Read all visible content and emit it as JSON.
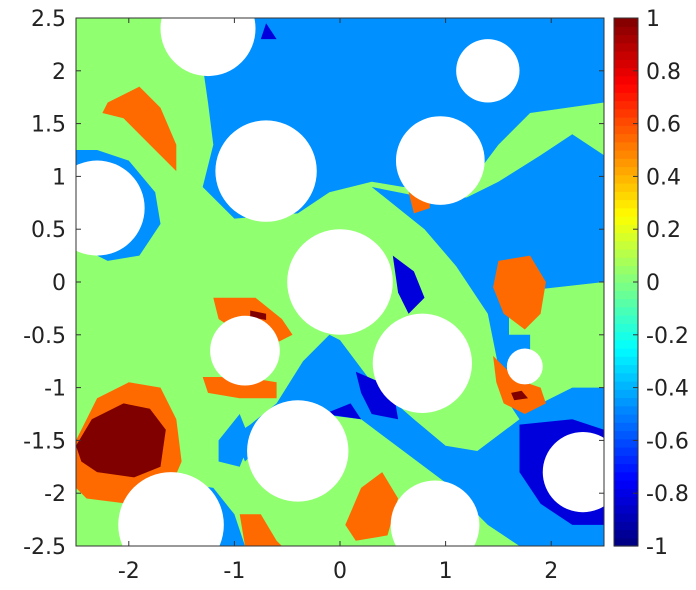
{
  "chart_data": {
    "type": "heatmap",
    "title": "",
    "xlabel": "",
    "ylabel": "",
    "xlim": [
      -2.5,
      2.5
    ],
    "ylim": [
      -2.5,
      2.5
    ],
    "x_ticks": [
      -2,
      -1,
      0,
      1,
      2
    ],
    "x_tick_labels": [
      "-2",
      "-1",
      "0",
      "1",
      "2"
    ],
    "y_ticks": [
      2.5,
      2,
      1.5,
      1,
      0.5,
      0,
      -0.5,
      -1,
      -1.5,
      -2,
      -2.5
    ],
    "y_tick_labels": [
      "2.5",
      "2",
      "1.5",
      "1",
      "0.5",
      "0",
      "-0.5",
      "-1",
      "-1.5",
      "-2",
      "-2.5"
    ],
    "colorbar": {
      "colormap": "jet",
      "range": [
        -1,
        1
      ],
      "ticks": [
        1,
        0.8,
        0.6,
        0.4,
        0.2,
        0,
        -0.2,
        -0.4,
        -0.6,
        -0.8,
        -1
      ],
      "tick_labels": [
        "1",
        "0.8",
        "0.6",
        "0.4",
        "0.2",
        "0",
        "-0.2",
        "-0.4",
        "-0.6",
        "-0.8",
        "-1"
      ]
    },
    "background_level": 0,
    "level_colors": {
      "-0.8": "#0000dd",
      "-0.5": "#0090ff",
      "0": "#90ff70",
      "0.6": "#ff6a00",
      "1": "#800000"
    },
    "holes": [
      {
        "cx": -1.25,
        "cy": 2.4,
        "r": 0.45
      },
      {
        "cx": 1.4,
        "cy": 2.0,
        "r": 0.3
      },
      {
        "cx": 0.95,
        "cy": 1.15,
        "r": 0.42
      },
      {
        "cx": -0.7,
        "cy": 1.05,
        "r": 0.48
      },
      {
        "cx": -2.3,
        "cy": 0.7,
        "r": 0.45
      },
      {
        "cx": 0.0,
        "cy": 0.0,
        "r": 0.5
      },
      {
        "cx": -0.9,
        "cy": -0.65,
        "r": 0.33
      },
      {
        "cx": 0.78,
        "cy": -0.77,
        "r": 0.47
      },
      {
        "cx": 1.75,
        "cy": -0.8,
        "r": 0.17
      },
      {
        "cx": -0.4,
        "cy": -1.6,
        "r": 0.48
      },
      {
        "cx": 2.3,
        "cy": -1.8,
        "r": 0.38
      },
      {
        "cx": -1.6,
        "cy": -2.3,
        "r": 0.5
      },
      {
        "cx": 0.9,
        "cy": -2.3,
        "r": 0.42
      }
    ],
    "regions": [
      {
        "level": -0.5,
        "points": [
          [
            -1.0,
            2.5
          ],
          [
            2.5,
            2.5
          ],
          [
            2.5,
            1.7
          ],
          [
            1.8,
            1.6
          ],
          [
            1.5,
            1.3
          ],
          [
            1.2,
            0.9
          ],
          [
            0.6,
            0.9
          ],
          [
            0.3,
            0.95
          ],
          [
            0.1,
            0.9
          ],
          [
            -0.1,
            0.85
          ],
          [
            -0.4,
            0.65
          ],
          [
            -1.0,
            0.6
          ],
          [
            -1.3,
            0.9
          ],
          [
            -1.2,
            1.3
          ],
          [
            -1.25,
            1.7
          ],
          [
            -1.3,
            2.05
          ],
          [
            -1.2,
            2.2
          ]
        ]
      },
      {
        "level": -0.5,
        "points": [
          [
            0.3,
            0.9
          ],
          [
            0.8,
            0.5
          ],
          [
            1.1,
            0.15
          ],
          [
            1.4,
            -0.3
          ],
          [
            1.5,
            -0.8
          ],
          [
            1.6,
            -1.15
          ],
          [
            1.7,
            -1.3
          ],
          [
            1.3,
            -1.6
          ],
          [
            1.0,
            -1.55
          ],
          [
            0.7,
            -1.3
          ],
          [
            0.3,
            -0.95
          ],
          [
            0.0,
            -0.55
          ],
          [
            -0.1,
            -0.5
          ],
          [
            -0.35,
            -0.75
          ],
          [
            -0.6,
            -1.15
          ],
          [
            -0.85,
            -1.35
          ],
          [
            -1.0,
            -1.45
          ],
          [
            -0.9,
            -1.7
          ],
          [
            -0.6,
            -1.4
          ],
          [
            -0.2,
            -1.25
          ],
          [
            0.2,
            -1.3
          ],
          [
            0.6,
            -1.6
          ],
          [
            1.0,
            -1.9
          ],
          [
            1.4,
            -2.3
          ],
          [
            1.7,
            -2.5
          ],
          [
            2.5,
            -2.5
          ],
          [
            2.5,
            -1.0
          ],
          [
            2.2,
            -1.0
          ],
          [
            1.8,
            -1.2
          ],
          [
            1.8,
            -0.5
          ],
          [
            1.6,
            -0.5
          ],
          [
            1.6,
            -0.1
          ],
          [
            2.5,
            0.0
          ],
          [
            2.5,
            1.2
          ],
          [
            2.2,
            1.4
          ],
          [
            1.9,
            1.2
          ],
          [
            1.5,
            0.95
          ],
          [
            1.2,
            0.8
          ],
          [
            0.8,
            0.8
          ]
        ]
      },
      {
        "level": -0.5,
        "points": [
          [
            -2.5,
            0.35
          ],
          [
            -2.2,
            0.2
          ],
          [
            -1.9,
            0.25
          ],
          [
            -1.7,
            0.55
          ],
          [
            -1.75,
            0.85
          ],
          [
            -2.0,
            1.15
          ],
          [
            -2.3,
            1.25
          ],
          [
            -2.5,
            1.25
          ]
        ]
      },
      {
        "level": -0.5,
        "points": [
          [
            -1.9,
            -2.5
          ],
          [
            -1.5,
            -1.9
          ],
          [
            -1.2,
            -1.95
          ],
          [
            -1.0,
            -2.2
          ],
          [
            -0.9,
            -2.5
          ]
        ]
      },
      {
        "level": -0.5,
        "points": [
          [
            -1.15,
            -1.5
          ],
          [
            -0.95,
            -1.25
          ],
          [
            -0.85,
            -1.5
          ],
          [
            -0.95,
            -1.75
          ],
          [
            -1.15,
            -1.7
          ]
        ]
      },
      {
        "level": -0.8,
        "points": [
          [
            0.5,
            0.25
          ],
          [
            0.7,
            0.1
          ],
          [
            0.8,
            -0.15
          ],
          [
            0.65,
            -0.3
          ],
          [
            0.55,
            -0.1
          ]
        ]
      },
      {
        "level": -0.8,
        "points": [
          [
            0.15,
            -0.85
          ],
          [
            0.5,
            -1.0
          ],
          [
            0.55,
            -1.3
          ],
          [
            0.3,
            -1.25
          ],
          [
            0.2,
            -1.05
          ]
        ]
      },
      {
        "level": -0.8,
        "points": [
          [
            -0.15,
            -1.25
          ],
          [
            0.2,
            -1.3
          ],
          [
            0.1,
            -1.15
          ]
        ]
      },
      {
        "level": -0.8,
        "points": [
          [
            1.7,
            -1.35
          ],
          [
            2.2,
            -1.3
          ],
          [
            2.5,
            -1.4
          ],
          [
            2.5,
            -2.3
          ],
          [
            2.2,
            -2.3
          ],
          [
            1.9,
            -2.1
          ],
          [
            1.7,
            -1.8
          ]
        ]
      },
      {
        "level": -0.8,
        "points": [
          [
            -0.7,
            2.45
          ],
          [
            -0.6,
            2.3
          ],
          [
            -0.75,
            2.3
          ]
        ]
      },
      {
        "level": 0.6,
        "points": [
          [
            -2.2,
            1.7
          ],
          [
            -1.9,
            1.85
          ],
          [
            -1.7,
            1.65
          ],
          [
            -1.55,
            1.3
          ],
          [
            -1.55,
            1.05
          ],
          [
            -1.8,
            1.3
          ],
          [
            -2.05,
            1.55
          ],
          [
            -2.25,
            1.6
          ]
        ]
      },
      {
        "level": 0.6,
        "points": [
          [
            -2.5,
            -1.5
          ],
          [
            -2.3,
            -1.1
          ],
          [
            -2.0,
            -0.95
          ],
          [
            -1.7,
            -1.0
          ],
          [
            -1.55,
            -1.3
          ],
          [
            -1.5,
            -1.7
          ],
          [
            -1.65,
            -2.05
          ],
          [
            -2.0,
            -2.1
          ],
          [
            -2.4,
            -2.05
          ],
          [
            -2.5,
            -1.95
          ]
        ]
      },
      {
        "level": 0.6,
        "points": [
          [
            -1.2,
            -0.15
          ],
          [
            -0.8,
            -0.15
          ],
          [
            -0.55,
            -0.35
          ],
          [
            -0.45,
            -0.5
          ],
          [
            -0.65,
            -0.6
          ],
          [
            -1.0,
            -0.45
          ],
          [
            -1.15,
            -0.35
          ]
        ]
      },
      {
        "level": 0.6,
        "points": [
          [
            -1.3,
            -0.9
          ],
          [
            -0.9,
            -0.9
          ],
          [
            -0.6,
            -0.95
          ],
          [
            -0.6,
            -1.1
          ],
          [
            -0.95,
            -1.1
          ],
          [
            -1.25,
            -1.05
          ]
        ]
      },
      {
        "level": 0.6,
        "points": [
          [
            1.5,
            0.2
          ],
          [
            1.8,
            0.25
          ],
          [
            1.95,
            0.0
          ],
          [
            1.9,
            -0.3
          ],
          [
            1.75,
            -0.45
          ],
          [
            1.55,
            -0.3
          ],
          [
            1.45,
            -0.05
          ]
        ]
      },
      {
        "level": 0.6,
        "points": [
          [
            1.45,
            -0.7
          ],
          [
            1.6,
            -0.85
          ],
          [
            1.75,
            -0.95
          ],
          [
            1.9,
            -1.0
          ],
          [
            1.95,
            -1.15
          ],
          [
            1.75,
            -1.25
          ],
          [
            1.55,
            -1.15
          ],
          [
            1.48,
            -0.95
          ]
        ]
      },
      {
        "level": 0.6,
        "points": [
          [
            0.05,
            -2.3
          ],
          [
            0.2,
            -1.95
          ],
          [
            0.4,
            -1.8
          ],
          [
            0.55,
            -2.05
          ],
          [
            0.45,
            -2.4
          ],
          [
            0.15,
            -2.45
          ]
        ]
      },
      {
        "level": 0.6,
        "points": [
          [
            -0.95,
            -2.2
          ],
          [
            -0.75,
            -2.2
          ],
          [
            -0.6,
            -2.45
          ],
          [
            -0.55,
            -2.5
          ],
          [
            -0.9,
            -2.5
          ]
        ]
      },
      {
        "level": 0.6,
        "points": [
          [
            0.65,
            0.85
          ],
          [
            0.85,
            0.8
          ],
          [
            0.85,
            0.7
          ],
          [
            0.7,
            0.65
          ]
        ]
      },
      {
        "level": 1,
        "points": [
          [
            -2.5,
            -1.55
          ],
          [
            -2.35,
            -1.3
          ],
          [
            -2.05,
            -1.15
          ],
          [
            -1.8,
            -1.2
          ],
          [
            -1.65,
            -1.4
          ],
          [
            -1.7,
            -1.75
          ],
          [
            -1.95,
            -1.85
          ],
          [
            -2.3,
            -1.8
          ],
          [
            -2.45,
            -1.7
          ]
        ]
      },
      {
        "level": 1,
        "points": [
          [
            -0.85,
            -0.27
          ],
          [
            -0.7,
            -0.3
          ],
          [
            -0.7,
            -0.36
          ],
          [
            -0.85,
            -0.33
          ]
        ]
      },
      {
        "level": 1,
        "points": [
          [
            1.62,
            -1.05
          ],
          [
            1.72,
            -1.03
          ],
          [
            1.78,
            -1.1
          ],
          [
            1.65,
            -1.12
          ]
        ]
      }
    ]
  }
}
